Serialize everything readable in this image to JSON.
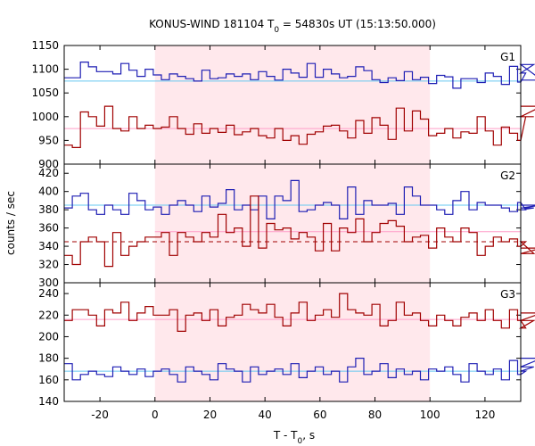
{
  "chart_data": {
    "type": "line",
    "title": "KONUS-WIND 181104 T",
    "title_sub": "0",
    "title_tail": " = 54830s UT (15:13:50.000)",
    "xlabel": "T - T",
    "xlabel_sub": "0",
    "xlabel_tail": ", s",
    "ylabel": "counts / sec",
    "xlim": [
      -33,
      133
    ],
    "x_step": 2.944,
    "x_ticks": [
      -20,
      0,
      20,
      40,
      60,
      80,
      100,
      120
    ],
    "shaded_interval": [
      0,
      100
    ],
    "colors": {
      "blue": "#1f1fb4",
      "red": "#a00000",
      "lightblue": "#66c8f0",
      "pink": "#ff9ec8",
      "shade": "#ffe8ec",
      "dashed": "#a00000"
    },
    "panels": [
      {
        "label": "G1",
        "ylim": [
          900,
          1150
        ],
        "y_ticks": [
          900,
          950,
          1000,
          1050,
          1100,
          1150
        ],
        "series": [
          {
            "color": "blue",
            "values": [
              1082,
              1082,
              1115,
              1105,
              1095,
              1095,
              1090,
              1112,
              1098,
              1085,
              1100,
              1088,
              1078,
              1090,
              1085,
              1080,
              1075,
              1098,
              1080,
              1082,
              1090,
              1085,
              1090,
              1078,
              1095,
              1085,
              1077,
              1100,
              1092,
              1083,
              1112,
              1083,
              1100,
              1090,
              1082,
              1085,
              1105,
              1097,
              1078,
              1072,
              1082,
              1076,
              1095,
              1078,
              1083,
              1070,
              1087,
              1084,
              1060,
              1080,
              1080,
              1072,
              1092,
              1085,
              1068,
              1106,
              1073,
              1092,
              1110,
              1077
            ]
          },
          {
            "color": "red",
            "values": [
              940,
              935,
              1010,
              1000,
              980,
              1022,
              975,
              970,
              1000,
              975,
              982,
              975,
              978,
              1000,
              975,
              963,
              985,
              965,
              975,
              967,
              982,
              962,
              968,
              975,
              960,
              955,
              975,
              950,
              960,
              942,
              963,
              968,
              980,
              982,
              970,
              955,
              992,
              965,
              998,
              982,
              952,
              1018,
              970,
              1012,
              995,
              960,
              965,
              975,
              955,
              968,
              965,
              1000,
              970,
              940,
              978,
              965,
              950,
              1000,
              1000,
              1022
            ]
          }
        ],
        "ref_lines": [
          {
            "color": "lightblue",
            "y": 1075,
            "x0": -33,
            "x1": 133
          },
          {
            "color": "pink",
            "y": 975,
            "x0": -33,
            "x1": 133
          }
        ]
      },
      {
        "label": "G2",
        "ylim": [
          300,
          430
        ],
        "y_ticks": [
          300,
          320,
          340,
          360,
          380,
          400,
          420
        ],
        "series": [
          {
            "color": "blue",
            "values": [
              382,
              395,
              398,
              380,
              375,
              385,
              380,
              375,
              398,
              390,
              380,
              383,
              375,
              385,
              390,
              385,
              378,
              395,
              383,
              387,
              402,
              380,
              385,
              380,
              395,
              370,
              395,
              390,
              412,
              378,
              380,
              385,
              388,
              385,
              370,
              405,
              375,
              390,
              385,
              385,
              387,
              375,
              405,
              395,
              385,
              385,
              380,
              375,
              390,
              400,
              380,
              388,
              385,
              385,
              382,
              378,
              388,
              380,
              382,
              385
            ]
          },
          {
            "color": "red",
            "values": [
              330,
              320,
              345,
              350,
              345,
              318,
              355,
              330,
              340,
              345,
              350,
              350,
              355,
              330,
              355,
              350,
              345,
              355,
              350,
              375,
              355,
              360,
              340,
              395,
              338,
              365,
              358,
              360,
              348,
              355,
              350,
              335,
              365,
              335,
              360,
              355,
              370,
              345,
              355,
              365,
              368,
              362,
              345,
              350,
              352,
              338,
              360,
              350,
              345,
              360,
              355,
              330,
              340,
              350,
              345,
              348,
              340,
              345,
              332,
              338
            ]
          }
        ],
        "ref_lines": [
          {
            "color": "lightblue",
            "y": 385,
            "x0": -33,
            "x1": 133
          },
          {
            "color": "pink",
            "y": 356,
            "x0": 0,
            "x1": 133
          },
          {
            "color": "red",
            "y": 345,
            "x0": -33,
            "x1": 133,
            "dashed": true
          }
        ]
      },
      {
        "label": "G3",
        "ylim": [
          140,
          250
        ],
        "y_ticks": [
          140,
          160,
          180,
          200,
          220,
          240
        ],
        "series": [
          {
            "color": "blue",
            "values": [
              175,
              160,
              165,
              168,
              165,
              163,
              172,
              168,
              165,
              170,
              163,
              168,
              170,
              165,
              158,
              172,
              168,
              165,
              160,
              175,
              170,
              168,
              158,
              172,
              165,
              168,
              170,
              165,
              175,
              162,
              168,
              172,
              165,
              168,
              158,
              172,
              180,
              165,
              168,
              175,
              162,
              170,
              165,
              168,
              160,
              170,
              168,
              172,
              165,
              158,
              175,
              168,
              165,
              170,
              160,
              178,
              165,
              168,
              172,
              180
            ]
          },
          {
            "color": "red",
            "values": [
              215,
              225,
              225,
              220,
              210,
              225,
              222,
              232,
              215,
              222,
              228,
              220,
              220,
              225,
              205,
              220,
              222,
              215,
              225,
              210,
              218,
              220,
              230,
              225,
              222,
              230,
              218,
              210,
              222,
              232,
              215,
              220,
              225,
              218,
              240,
              225,
              222,
              220,
              230,
              210,
              215,
              232,
              220,
              222,
              215,
              210,
              220,
              215,
              210,
              218,
              222,
              215,
              225,
              215,
              208,
              225,
              215,
              208,
              215,
              222
            ]
          }
        ],
        "ref_lines": [
          {
            "color": "lightblue",
            "y": 168,
            "x0": -33,
            "x1": 133
          },
          {
            "color": "pink",
            "y": 216,
            "x0": -33,
            "x1": 133
          }
        ]
      }
    ]
  }
}
